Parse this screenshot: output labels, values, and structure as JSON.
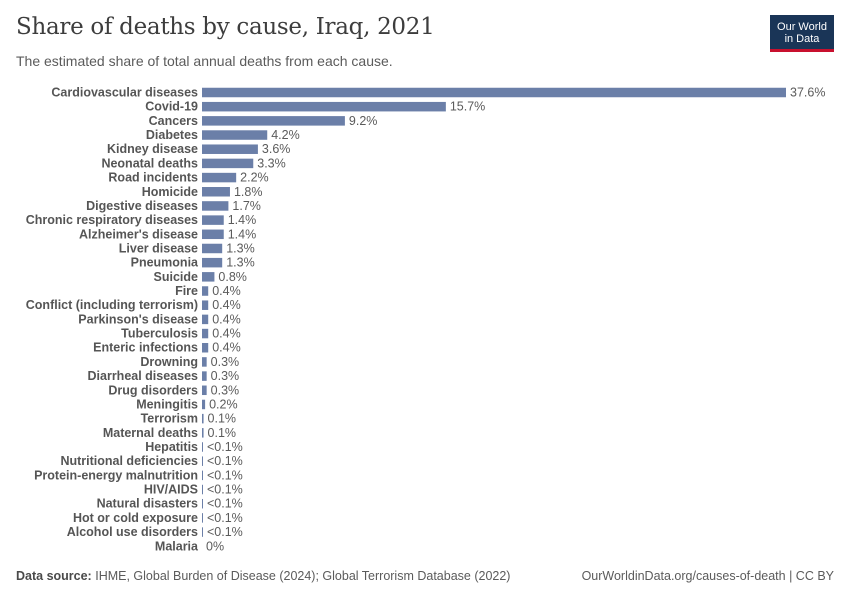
{
  "header": {
    "title": "Share of deaths by cause, Iraq, 2021",
    "subtitle": "The estimated share of total annual deaths from each cause."
  },
  "logo": {
    "line1": "Our World",
    "line2": "in Data"
  },
  "footer": {
    "source_label": "Data source:",
    "source_text": "IHME, Global Burden of Disease (2024); Global Terrorism Database (2022)",
    "url": "OurWorldinData.org/causes-of-death | CC BY"
  },
  "colors": {
    "bar": "#6b7fa8",
    "logo_bg": "#1a3557",
    "logo_accent": "#c8102e"
  },
  "chart_data": {
    "type": "bar",
    "orientation": "horizontal",
    "unit": "%",
    "categories": [
      "Cardiovascular diseases",
      "Covid-19",
      "Cancers",
      "Diabetes",
      "Kidney disease",
      "Neonatal deaths",
      "Road incidents",
      "Homicide",
      "Digestive diseases",
      "Chronic respiratory diseases",
      "Alzheimer's disease",
      "Liver disease",
      "Pneumonia",
      "Suicide",
      "Fire",
      "Conflict (including terrorism)",
      "Parkinson's disease",
      "Tuberculosis",
      "Enteric infections",
      "Drowning",
      "Diarrheal diseases",
      "Drug disorders",
      "Meningitis",
      "Terrorism",
      "Maternal deaths",
      "Hepatitis",
      "Nutritional deficiencies",
      "Protein-energy malnutrition",
      "HIV/AIDS",
      "Natural disasters",
      "Hot or cold exposure",
      "Alcohol use disorders",
      "Malaria"
    ],
    "values": [
      37.6,
      15.7,
      9.2,
      4.2,
      3.6,
      3.3,
      2.2,
      1.8,
      1.7,
      1.4,
      1.4,
      1.3,
      1.3,
      0.8,
      0.4,
      0.4,
      0.4,
      0.4,
      0.4,
      0.3,
      0.3,
      0.3,
      0.2,
      0.1,
      0.1,
      0.05,
      0.05,
      0.05,
      0.05,
      0.05,
      0.03,
      0.03,
      0
    ],
    "labels": [
      "37.6%",
      "15.7%",
      "9.2%",
      "4.2%",
      "3.6%",
      "3.3%",
      "2.2%",
      "1.8%",
      "1.7%",
      "1.4%",
      "1.4%",
      "1.3%",
      "1.3%",
      "0.8%",
      "0.4%",
      "0.4%",
      "0.4%",
      "0.4%",
      "0.4%",
      "0.3%",
      "0.3%",
      "0.3%",
      "0.2%",
      "0.1%",
      "0.1%",
      "<0.1%",
      "<0.1%",
      "<0.1%",
      "<0.1%",
      "<0.1%",
      "<0.1%",
      "<0.1%",
      "0%"
    ],
    "xlim": [
      0,
      37.6
    ]
  }
}
